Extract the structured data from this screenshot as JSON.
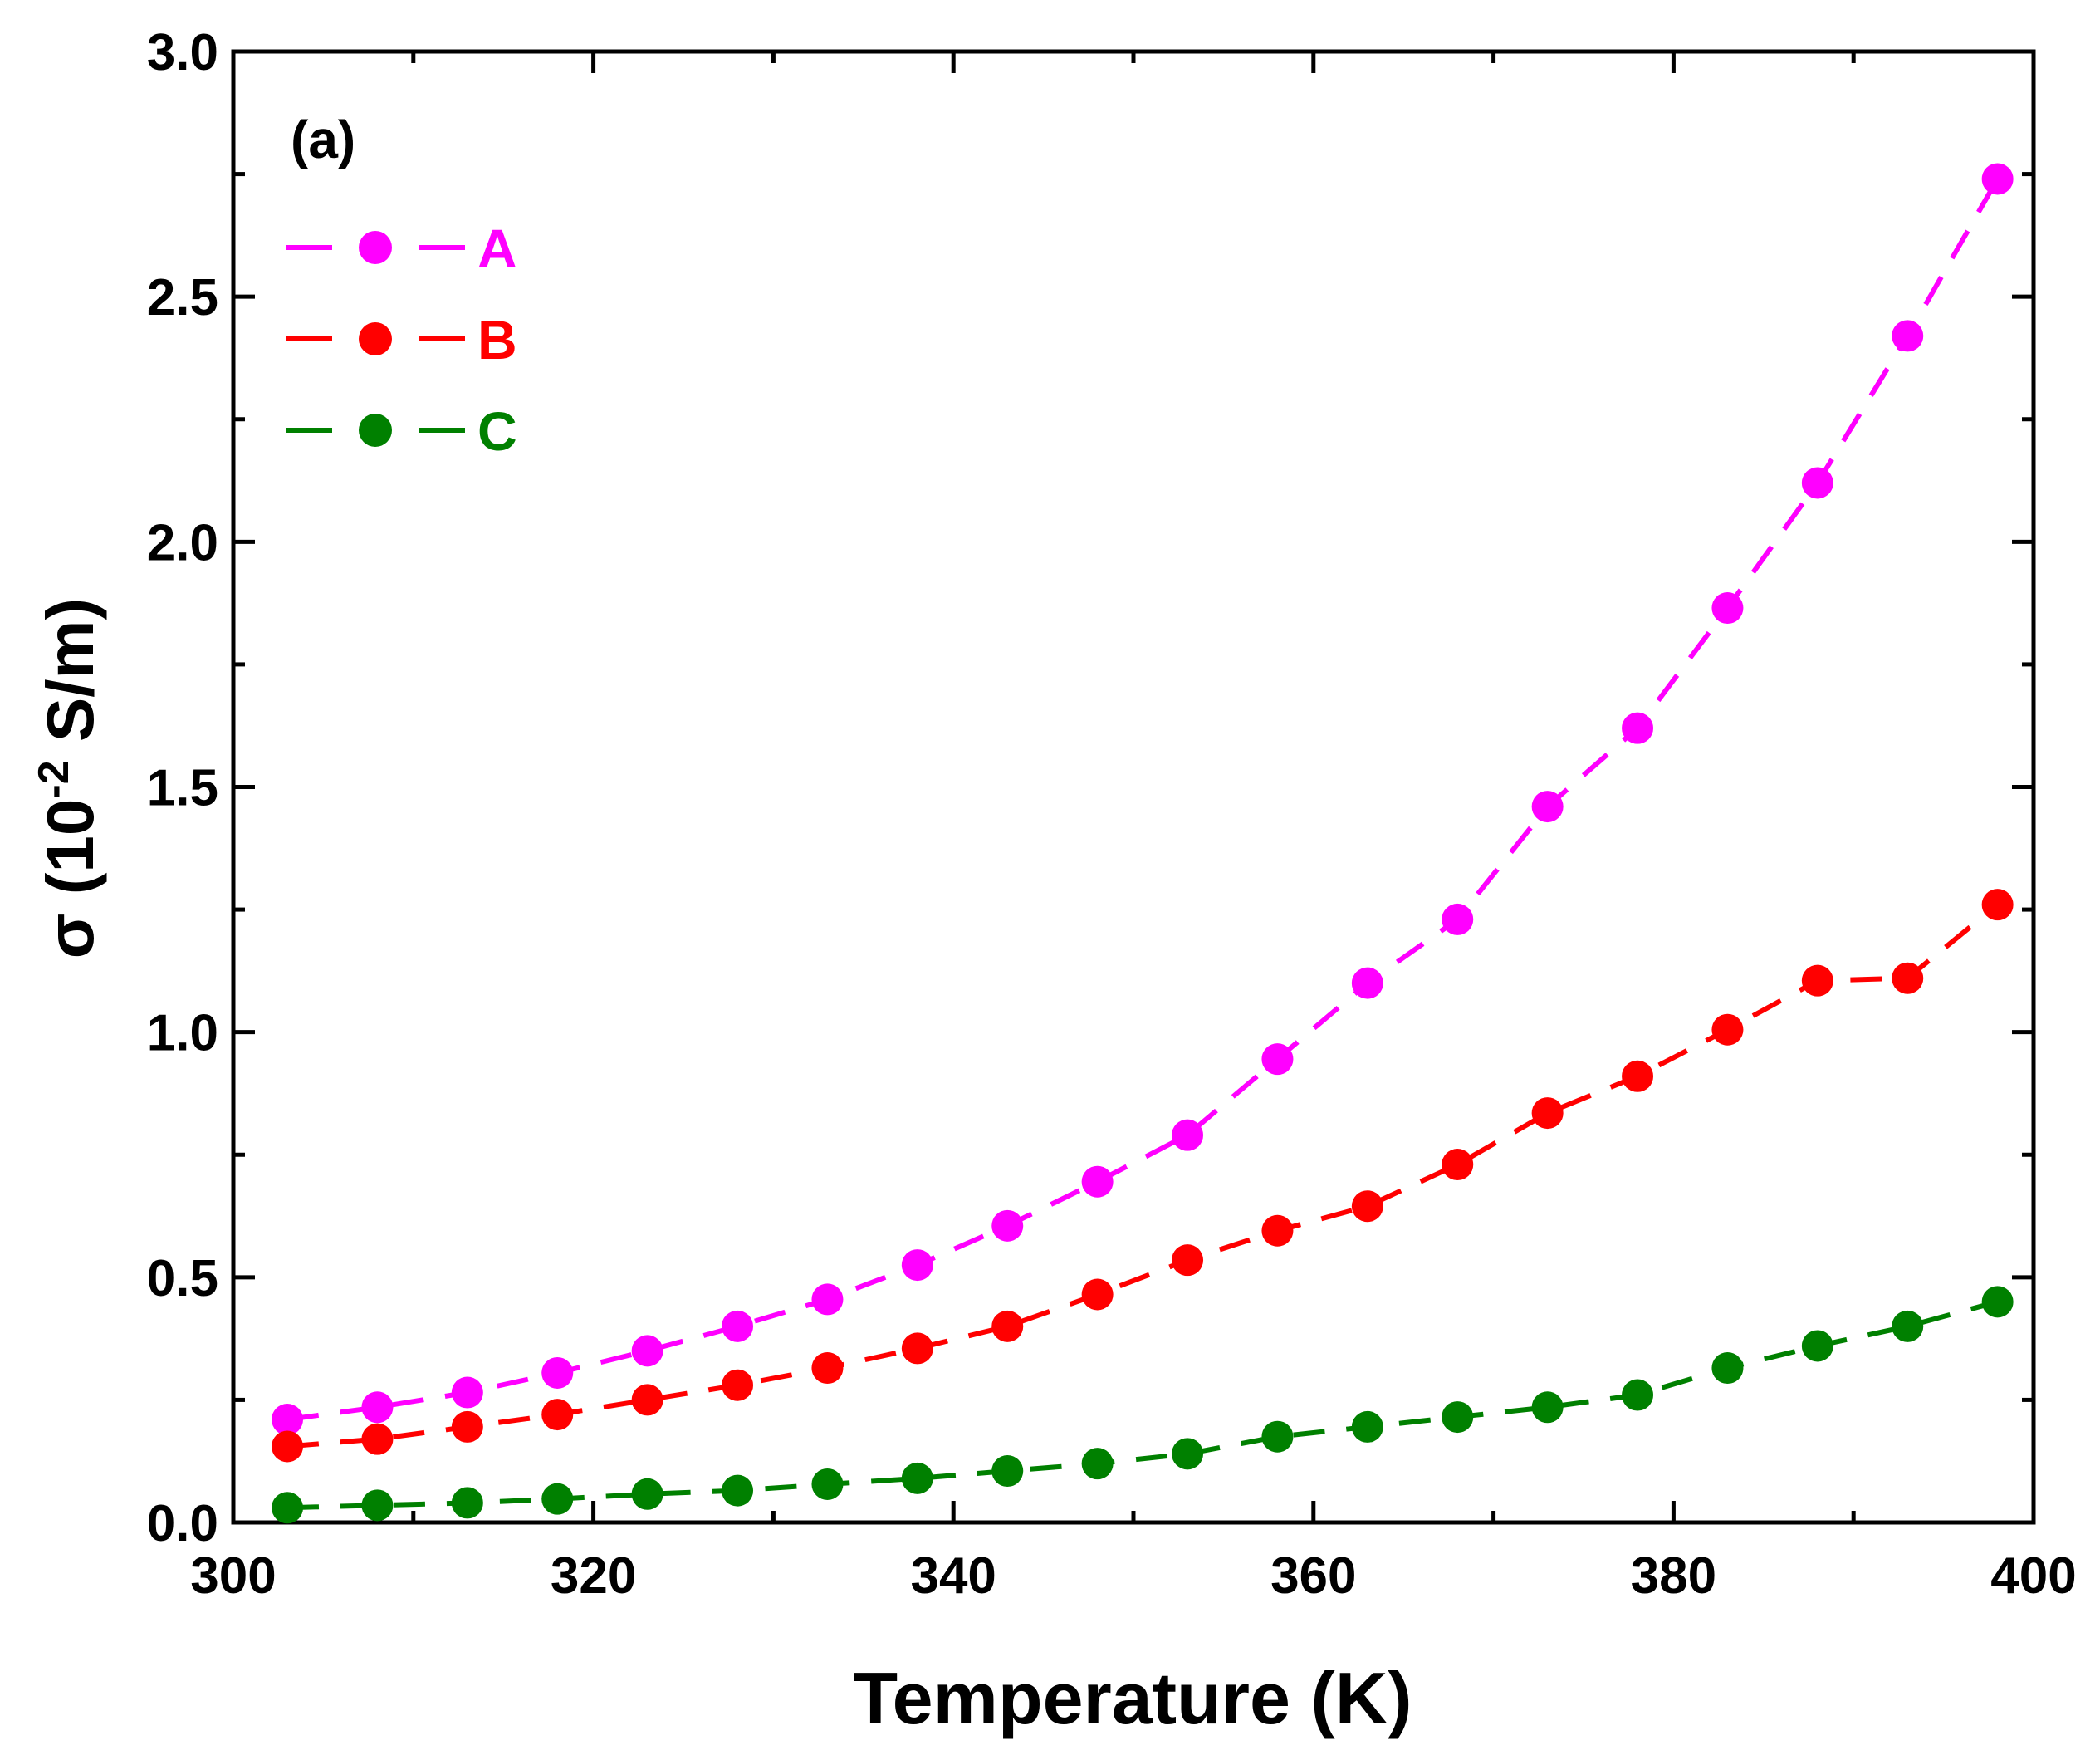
{
  "chart_data": {
    "type": "line",
    "panel_label": "(a)",
    "xlabel": "Temperature (K)",
    "ylabel_main": "σ (10",
    "ylabel_sup": "-2",
    "ylabel_tail": " S/m)",
    "xlim": [
      300,
      400
    ],
    "ylim": [
      0,
      3.0
    ],
    "x_ticks": [
      300,
      320,
      340,
      360,
      380,
      400
    ],
    "x_tick_labels": [
      "300",
      "320",
      "340",
      "360",
      "380",
      "400"
    ],
    "y_ticks": [
      0,
      0.5,
      1.0,
      1.5,
      2.0,
      2.5,
      3.0
    ],
    "y_tick_labels": [
      "0.0",
      "0.5",
      "1.0",
      "1.5",
      "2.0",
      "2.5",
      "3.0"
    ],
    "grid": false,
    "legend_position": "top-left",
    "line_style": "dashed",
    "marker": "circle",
    "x": [
      303,
      308,
      313,
      318,
      323,
      328,
      333,
      338,
      343,
      348,
      353,
      358,
      363,
      368,
      373,
      378,
      383,
      388,
      393,
      398
    ],
    "series": [
      {
        "name": "A",
        "color": "#ff00ff",
        "values": [
          0.21,
          0.235,
          0.265,
          0.305,
          0.35,
          0.4,
          0.455,
          0.525,
          0.605,
          0.695,
          0.79,
          0.945,
          1.1,
          1.23,
          1.46,
          1.62,
          1.865,
          2.12,
          2.42,
          2.74
        ]
      },
      {
        "name": "B",
        "color": "#ff0000",
        "values": [
          0.155,
          0.17,
          0.195,
          0.22,
          0.25,
          0.28,
          0.315,
          0.355,
          0.4,
          0.465,
          0.535,
          0.595,
          0.645,
          0.73,
          0.835,
          0.91,
          1.005,
          1.105,
          1.11,
          1.26
        ]
      },
      {
        "name": "C",
        "color": "#008000",
        "values": [
          0.03,
          0.035,
          0.04,
          0.048,
          0.058,
          0.065,
          0.078,
          0.09,
          0.105,
          0.12,
          0.14,
          0.175,
          0.195,
          0.215,
          0.235,
          0.26,
          0.315,
          0.36,
          0.4,
          0.45
        ]
      }
    ]
  }
}
